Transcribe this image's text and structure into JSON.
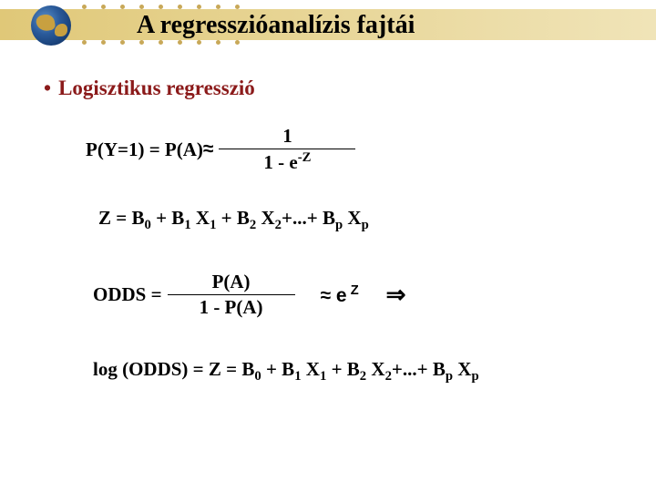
{
  "title": "A regresszióanalízis fajtái",
  "bullet": "Logisztikus regresszió",
  "formula1": {
    "lhs": "P(Y=1) = P(A) ",
    "approx": "≈",
    "num": "1",
    "den_pre": "1 - e",
    "den_sup": "-Z"
  },
  "zline": {
    "pre": "Z = B",
    "s0": "0",
    "t1": " + B",
    "s1": "1",
    "x1": " X",
    "xs1": "1",
    "t2": " + B",
    "s2": "2",
    "x2": " X",
    "xs2": "2",
    "mid": "+...+  B",
    "sp": "p",
    "xp": " X",
    "xsp": "p"
  },
  "odds": {
    "lhs": "ODDS = ",
    "num": "P(A)",
    "den": "1 - P(A)",
    "approx": " ≈ e",
    "sup": " Z",
    "implies": "⇒"
  },
  "logline": {
    "pre": "log (ODDS) =   Z = B"
  },
  "colors": {
    "heading": "#8b1a1a",
    "body": "#000000",
    "band_start": "#e0c878",
    "band_end": "#f0e4b8"
  }
}
